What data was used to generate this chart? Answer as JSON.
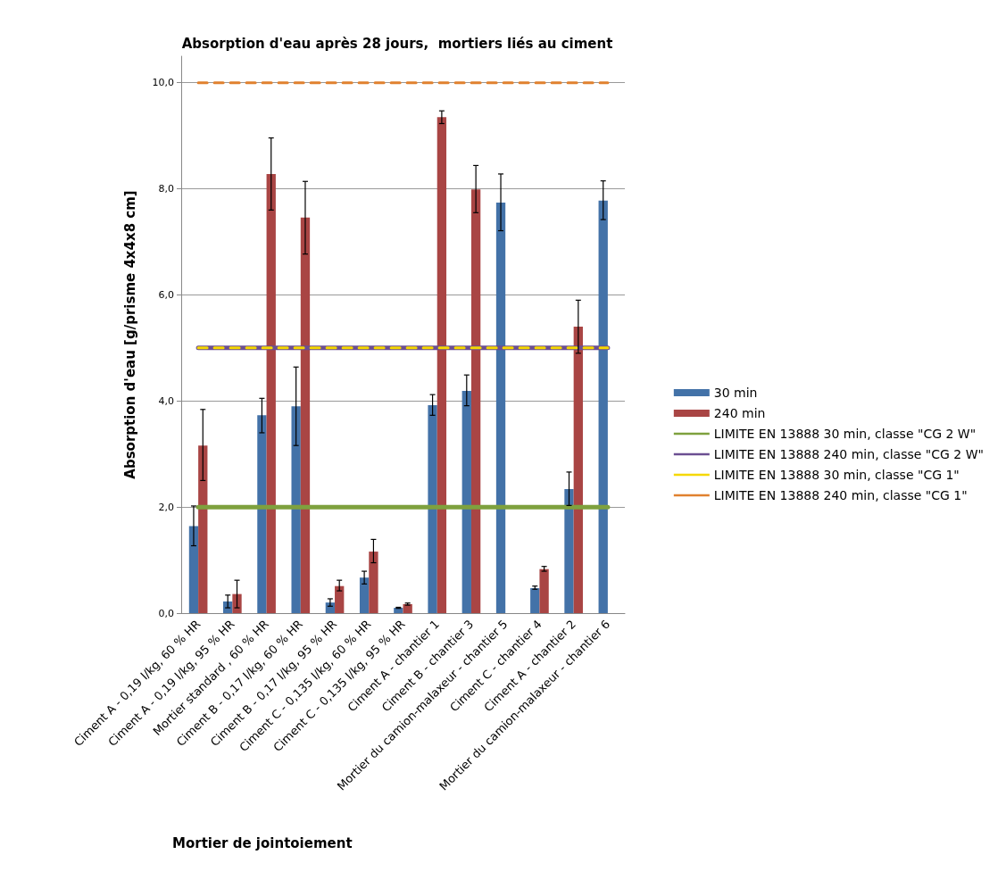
{
  "chart_data": {
    "type": "bar",
    "title": "Absorption d'eau après 28 jours,  mortiers liés au ciment",
    "xlabel": "Mortier de jointoiement",
    "ylabel": "Absorption d'eau [g/prisme 4x4x8 cm]",
    "categories": [
      "Ciment A - 0,19 l/kg, 60 % HR",
      "Ciment A - 0,19 l/kg, 95 % HR",
      "Mortier standard , 60 % HR",
      "Ciment B - 0,17 l/kg, 60 % HR",
      "Ciment B - 0,17 l/kg, 95 % HR",
      "Ciment C - 0,135 l/kg, 60 % HR",
      "Ciment C - 0,135 l/kg, 95 % HR",
      "Ciment A - chantier 1",
      "Ciment B - chantier 3",
      "Mortier du camion-malaxeur - chantier 5",
      "Ciment C - chantier 4",
      "Ciment A - chantier 2",
      "Mortier du camion-malaxeur - chantier 6"
    ],
    "series": [
      {
        "name": "30 min",
        "color": "#4372a8",
        "values": [
          1.64,
          0.22,
          3.73,
          3.9,
          0.2,
          0.67,
          0.1,
          3.92,
          4.19,
          7.74,
          0.47,
          2.34,
          7.78
        ],
        "errors": [
          [
            1.27,
            2.02
          ],
          [
            0.1,
            0.34
          ],
          [
            3.4,
            4.05
          ],
          [
            3.16,
            4.64
          ],
          [
            0.13,
            0.27
          ],
          [
            0.55,
            0.79
          ],
          [
            0.09,
            0.11
          ],
          [
            3.73,
            4.12
          ],
          [
            3.91,
            4.49
          ],
          [
            7.21,
            8.28
          ],
          [
            0.45,
            0.51
          ],
          [
            2.03,
            2.66
          ],
          [
            7.42,
            8.15
          ]
        ]
      },
      {
        "name": "240 min",
        "color": "#a94544",
        "values": [
          3.16,
          0.36,
          8.28,
          7.46,
          0.51,
          1.16,
          0.17,
          9.35,
          7.99,
          null,
          0.83,
          5.4,
          null
        ],
        "errors": [
          [
            2.5,
            3.84
          ],
          [
            0.1,
            0.62
          ],
          [
            7.6,
            8.96
          ],
          [
            6.77,
            8.14
          ],
          [
            0.42,
            0.62
          ],
          [
            0.95,
            1.39
          ],
          [
            0.15,
            0.19
          ],
          [
            9.23,
            9.47
          ],
          [
            7.55,
            8.44
          ],
          null,
          [
            0.79,
            0.88
          ],
          [
            4.9,
            5.9
          ],
          null
        ]
      },
      {
        "name": "LIMITE EN 13888 30 min, classe \"CG 2 W\"",
        "type": "line",
        "color": "#7ea13e",
        "line_style": "solid",
        "values": [
          2,
          2,
          2,
          2,
          2,
          2,
          2,
          2,
          2,
          2,
          2,
          2,
          2
        ]
      },
      {
        "name": "LIMITE EN 13888 240 min, classe \"CG 2 W\"",
        "type": "line",
        "color": "#6b4f92",
        "line_style": "solid",
        "values": [
          5,
          5,
          5,
          5,
          5,
          5,
          5,
          5,
          5,
          5,
          5,
          5,
          5
        ]
      },
      {
        "name": "LIMITE EN 13888 30 min, classe \"CG 1\"",
        "type": "line",
        "color": "#f5d800",
        "line_style": "dashed",
        "values": [
          5,
          5,
          5,
          5,
          5,
          5,
          5,
          5,
          5,
          5,
          5,
          5,
          5
        ]
      },
      {
        "name": "LIMITE EN 13888 240 min, classe \"CG 1\"",
        "type": "line",
        "color": "#e0812f",
        "line_style": "dashed",
        "values": [
          10,
          10,
          10,
          10,
          10,
          10,
          10,
          10,
          10,
          10,
          10,
          10,
          10
        ]
      }
    ],
    "ylim": [
      0,
      10.5
    ],
    "yticks": [
      {
        "value": 0,
        "label": "0,0"
      },
      {
        "value": 2,
        "label": "2,0"
      },
      {
        "value": 4,
        "label": "4,0"
      },
      {
        "value": 6,
        "label": "6,0"
      },
      {
        "value": 8,
        "label": "8,0"
      },
      {
        "value": 10,
        "label": "10,0"
      }
    ],
    "grid": "y",
    "legend": "right",
    "marker": "none"
  }
}
